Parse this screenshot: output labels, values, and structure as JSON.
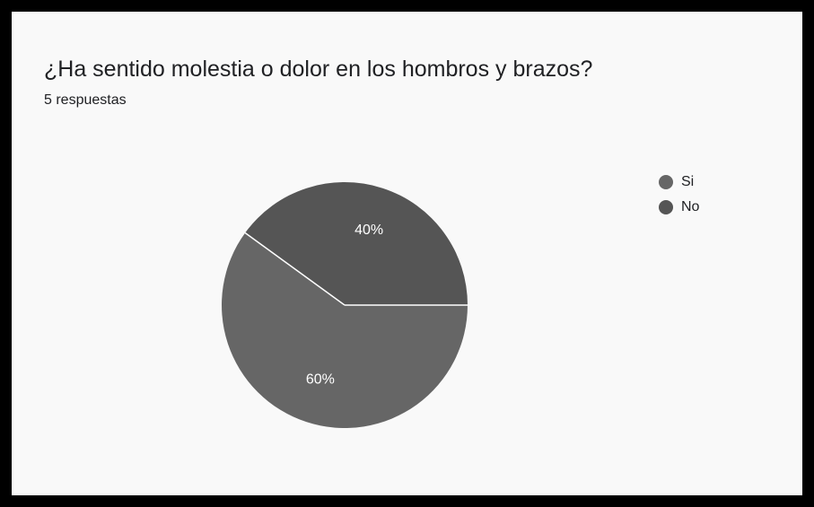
{
  "question": {
    "title": "¿Ha sentido molestia o dolor en los hombros y brazos?",
    "responses": "5 respuestas"
  },
  "colors": {
    "si": "#666666",
    "no": "#555555",
    "slice_label": "#ffffff",
    "divider": "#ffffff"
  },
  "chart_data": {
    "type": "pie",
    "title": "¿Ha sentido molestia o dolor en los hombros y brazos?",
    "subtitle": "5 respuestas",
    "legend_position": "right",
    "slices": [
      {
        "name": "Si",
        "value": 60,
        "label": "60%"
      },
      {
        "name": "No",
        "value": 40,
        "label": "40%"
      }
    ]
  }
}
